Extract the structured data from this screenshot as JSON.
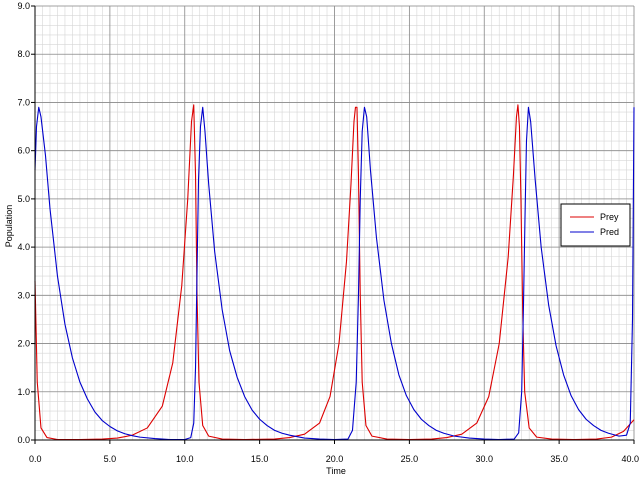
{
  "chart_data": {
    "type": "line",
    "title": "",
    "xlabel": "Time",
    "ylabel": "Population",
    "xlim": [
      0,
      40
    ],
    "ylim": [
      0,
      9
    ],
    "grid": true,
    "legend_position": "right",
    "x_ticks": [
      "0.0",
      "5.0",
      "10.0",
      "15.0",
      "20.0",
      "25.0",
      "30.0",
      "35.0",
      "40.0"
    ],
    "y_ticks": [
      "0.0",
      "1.0",
      "2.0",
      "3.0",
      "4.0",
      "5.0",
      "6.0",
      "7.0",
      "8.0",
      "9.0"
    ],
    "series": [
      {
        "name": "Prey",
        "color": "#dd0000",
        "points": [
          [
            0,
            3.3
          ],
          [
            0.15,
            1.2
          ],
          [
            0.4,
            0.25
          ],
          [
            0.8,
            0.05
          ],
          [
            1.5,
            0.01
          ],
          [
            3,
            0.01
          ],
          [
            4.5,
            0.02
          ],
          [
            5.5,
            0.04
          ],
          [
            6.5,
            0.1
          ],
          [
            7.5,
            0.25
          ],
          [
            8.5,
            0.7
          ],
          [
            9.2,
            1.6
          ],
          [
            9.8,
            3.2
          ],
          [
            10.2,
            5.0
          ],
          [
            10.45,
            6.6
          ],
          [
            10.6,
            6.95
          ],
          [
            10.72,
            5.5
          ],
          [
            10.82,
            3.0
          ],
          [
            10.95,
            1.2
          ],
          [
            11.2,
            0.3
          ],
          [
            11.6,
            0.08
          ],
          [
            12.5,
            0.02
          ],
          [
            14,
            0.01
          ],
          [
            16,
            0.02
          ],
          [
            17,
            0.05
          ],
          [
            18,
            0.12
          ],
          [
            19,
            0.35
          ],
          [
            19.7,
            0.9
          ],
          [
            20.3,
            2.0
          ],
          [
            20.8,
            3.7
          ],
          [
            21.1,
            5.3
          ],
          [
            21.3,
            6.6
          ],
          [
            21.4,
            6.9
          ],
          [
            21.5,
            6.9
          ],
          [
            21.6,
            5.5
          ],
          [
            21.72,
            3.0
          ],
          [
            21.85,
            1.2
          ],
          [
            22.1,
            0.3
          ],
          [
            22.5,
            0.08
          ],
          [
            23.5,
            0.02
          ],
          [
            25,
            0.01
          ],
          [
            26.5,
            0.02
          ],
          [
            27.5,
            0.05
          ],
          [
            28.5,
            0.12
          ],
          [
            29.5,
            0.35
          ],
          [
            30.3,
            0.9
          ],
          [
            31,
            2.0
          ],
          [
            31.6,
            3.8
          ],
          [
            31.95,
            5.5
          ],
          [
            32.15,
            6.7
          ],
          [
            32.25,
            6.95
          ],
          [
            32.35,
            6.5
          ],
          [
            32.45,
            5.0
          ],
          [
            32.57,
            2.6
          ],
          [
            32.7,
            1.0
          ],
          [
            33,
            0.25
          ],
          [
            33.5,
            0.06
          ],
          [
            34.5,
            0.02
          ],
          [
            36,
            0.01
          ],
          [
            37.5,
            0.02
          ],
          [
            38.5,
            0.06
          ],
          [
            39.3,
            0.18
          ],
          [
            40,
            0.42
          ]
        ]
      },
      {
        "name": "Pred",
        "color": "#0000cc",
        "points": [
          [
            0,
            5.6
          ],
          [
            0.1,
            6.5
          ],
          [
            0.25,
            6.9
          ],
          [
            0.4,
            6.7
          ],
          [
            0.7,
            5.9
          ],
          [
            1.0,
            4.8
          ],
          [
            1.5,
            3.4
          ],
          [
            2.0,
            2.4
          ],
          [
            2.5,
            1.7
          ],
          [
            3.0,
            1.2
          ],
          [
            3.5,
            0.85
          ],
          [
            4.0,
            0.58
          ],
          [
            4.5,
            0.4
          ],
          [
            5.0,
            0.28
          ],
          [
            5.5,
            0.19
          ],
          [
            6.0,
            0.13
          ],
          [
            6.5,
            0.09
          ],
          [
            7.0,
            0.06
          ],
          [
            8.0,
            0.03
          ],
          [
            9.0,
            0.01
          ],
          [
            10.0,
            0.01
          ],
          [
            10.4,
            0.05
          ],
          [
            10.6,
            0.35
          ],
          [
            10.72,
            1.5
          ],
          [
            10.82,
            3.5
          ],
          [
            10.92,
            5.4
          ],
          [
            11.05,
            6.5
          ],
          [
            11.2,
            6.9
          ],
          [
            11.35,
            6.4
          ],
          [
            11.6,
            5.3
          ],
          [
            12.0,
            3.9
          ],
          [
            12.5,
            2.7
          ],
          [
            13.0,
            1.85
          ],
          [
            13.5,
            1.3
          ],
          [
            14.0,
            0.9
          ],
          [
            14.5,
            0.62
          ],
          [
            15.0,
            0.43
          ],
          [
            15.5,
            0.3
          ],
          [
            16.0,
            0.2
          ],
          [
            16.5,
            0.14
          ],
          [
            17.0,
            0.1
          ],
          [
            18.0,
            0.04
          ],
          [
            19.0,
            0.02
          ],
          [
            20.0,
            0.01
          ],
          [
            20.9,
            0.02
          ],
          [
            21.2,
            0.2
          ],
          [
            21.45,
            1.2
          ],
          [
            21.6,
            3.0
          ],
          [
            21.72,
            5.0
          ],
          [
            21.85,
            6.4
          ],
          [
            22.0,
            6.9
          ],
          [
            22.15,
            6.7
          ],
          [
            22.4,
            5.6
          ],
          [
            22.8,
            4.2
          ],
          [
            23.3,
            2.9
          ],
          [
            23.8,
            2.0
          ],
          [
            24.3,
            1.35
          ],
          [
            24.8,
            0.92
          ],
          [
            25.3,
            0.63
          ],
          [
            25.8,
            0.43
          ],
          [
            26.3,
            0.3
          ],
          [
            26.8,
            0.2
          ],
          [
            27.3,
            0.14
          ],
          [
            28.0,
            0.08
          ],
          [
            29.0,
            0.04
          ],
          [
            30.0,
            0.02
          ],
          [
            31.0,
            0.01
          ],
          [
            32.0,
            0.02
          ],
          [
            32.3,
            0.15
          ],
          [
            32.5,
            1.0
          ],
          [
            32.62,
            2.8
          ],
          [
            32.72,
            4.6
          ],
          [
            32.82,
            6.2
          ],
          [
            32.95,
            6.9
          ],
          [
            33.1,
            6.6
          ],
          [
            33.4,
            5.4
          ],
          [
            33.8,
            4.0
          ],
          [
            34.3,
            2.8
          ],
          [
            34.8,
            1.95
          ],
          [
            35.3,
            1.35
          ],
          [
            35.8,
            0.92
          ],
          [
            36.3,
            0.63
          ],
          [
            36.8,
            0.43
          ],
          [
            37.3,
            0.3
          ],
          [
            37.8,
            0.2
          ],
          [
            38.3,
            0.14
          ],
          [
            39.0,
            0.08
          ],
          [
            39.5,
            0.1
          ],
          [
            39.75,
            0.35
          ],
          [
            39.9,
            2.5
          ],
          [
            40.0,
            6.9
          ]
        ]
      }
    ]
  }
}
